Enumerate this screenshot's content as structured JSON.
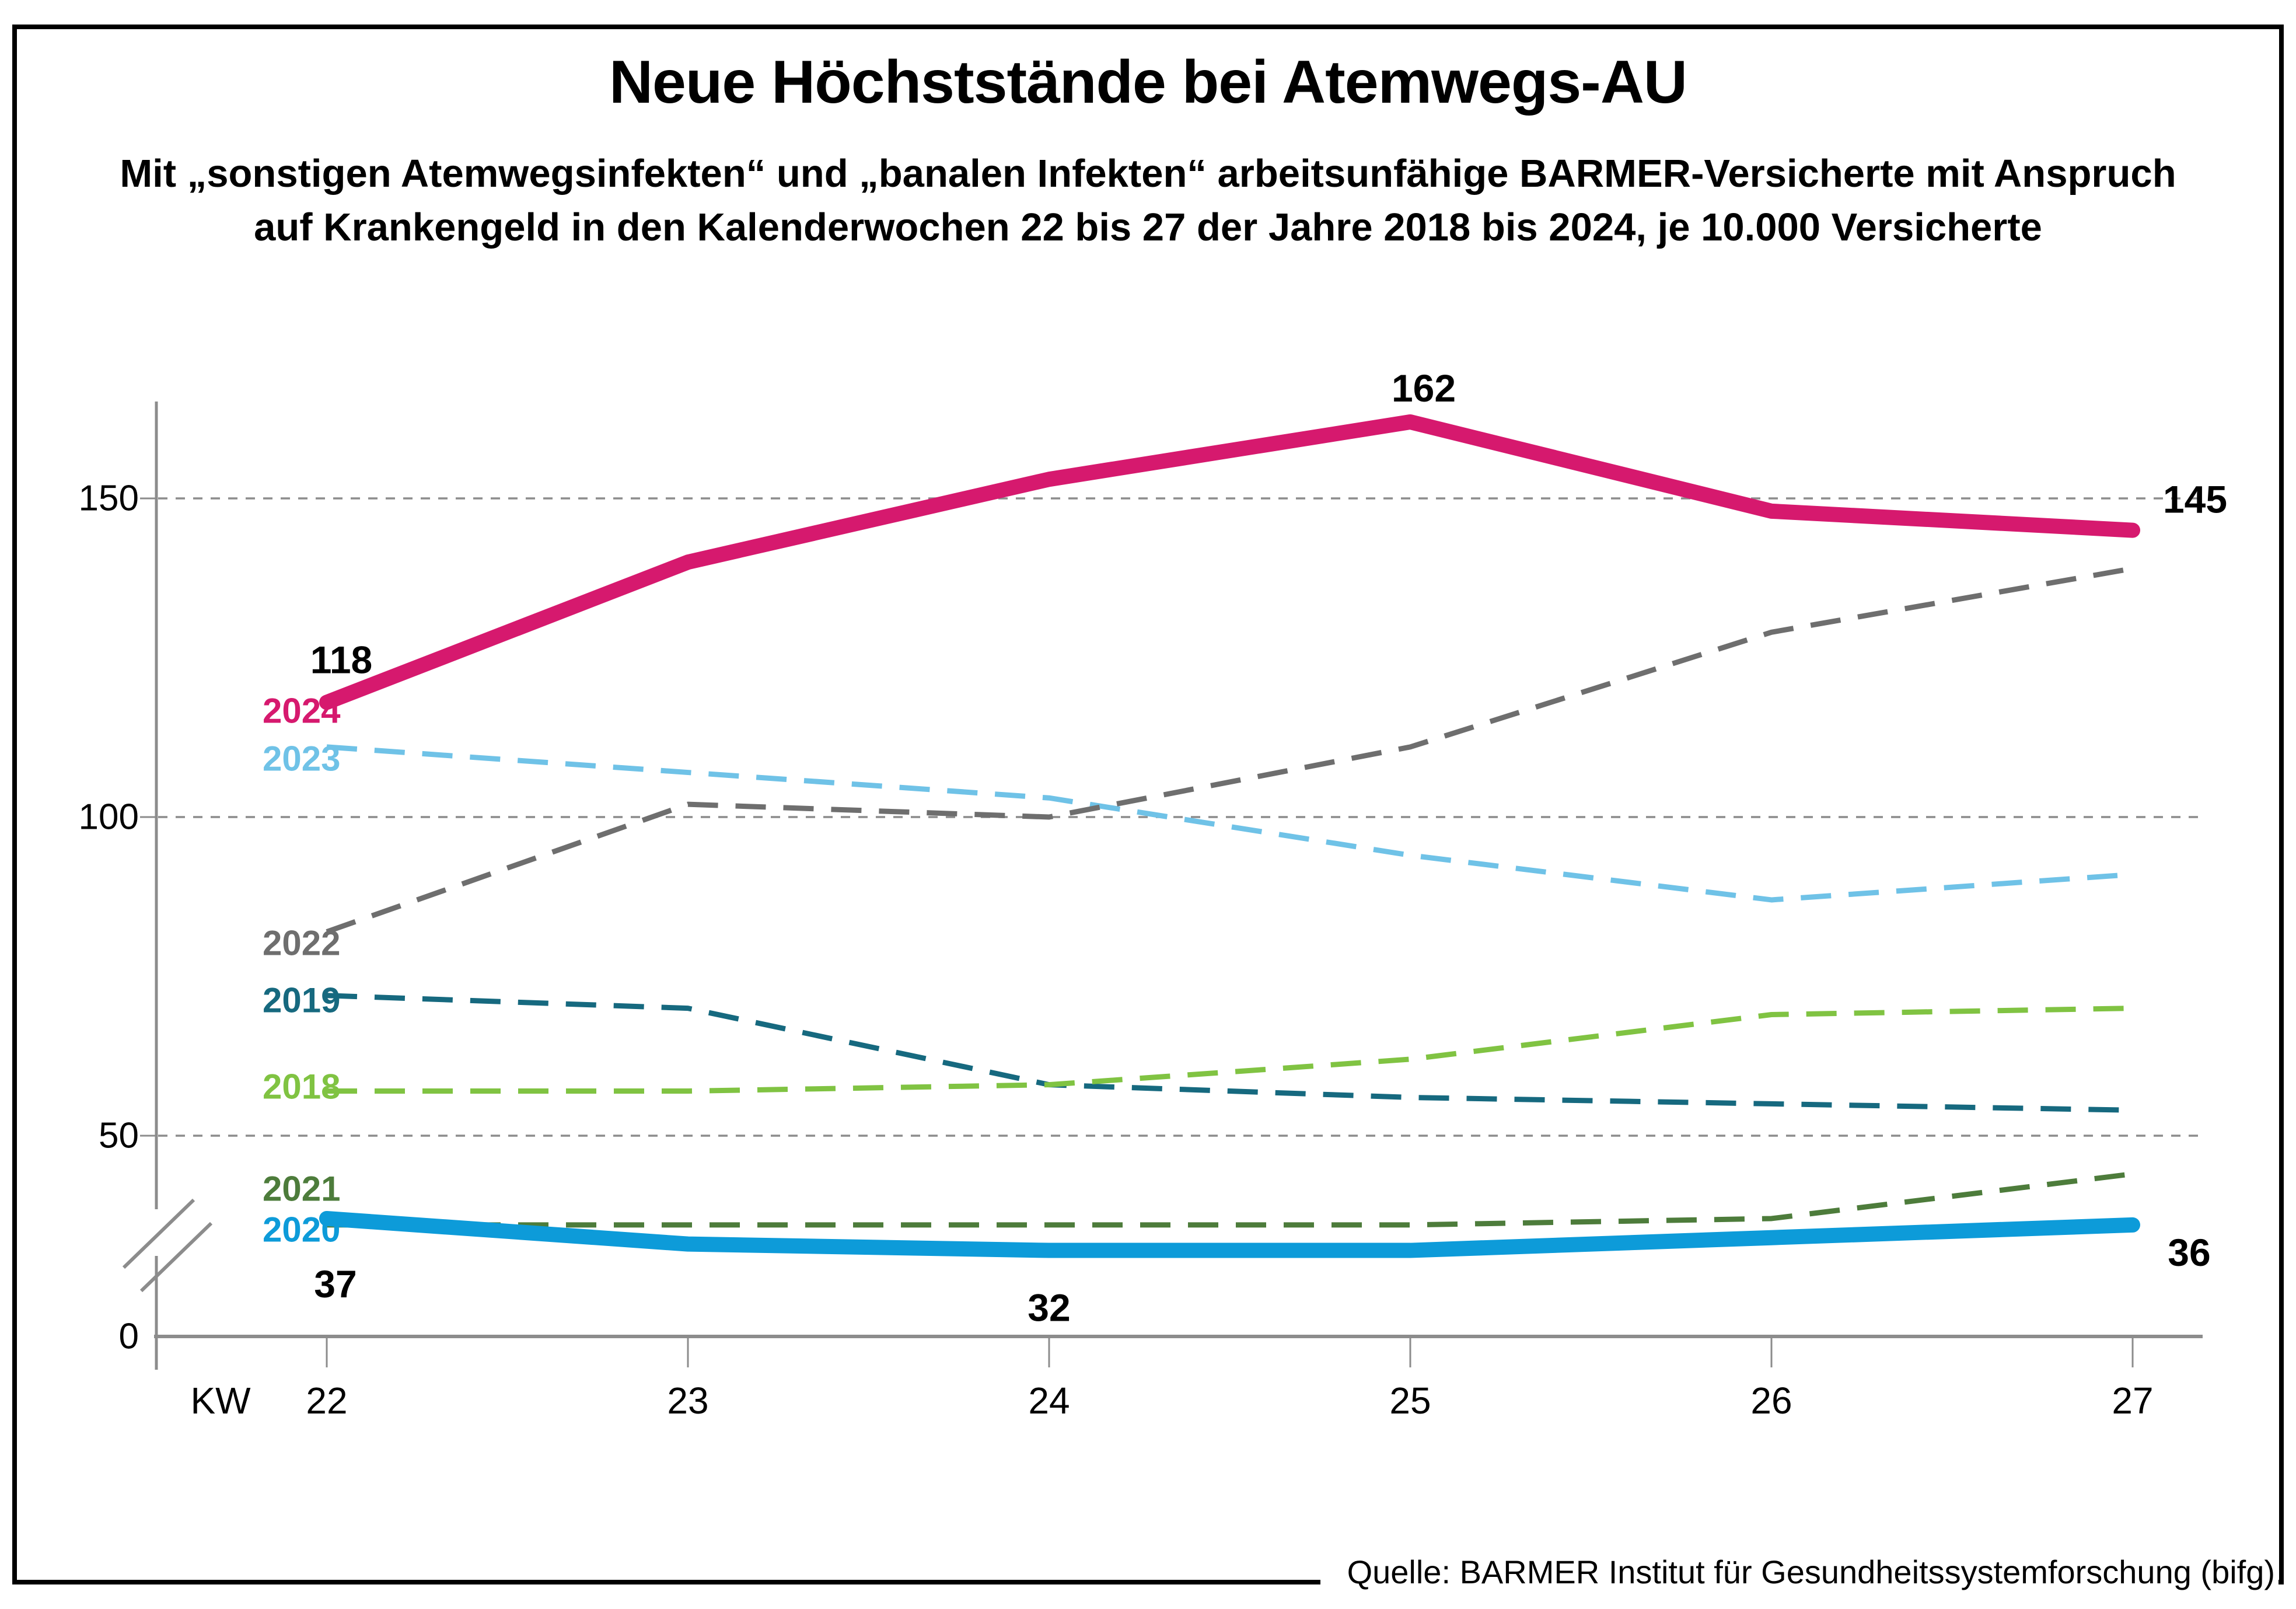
{
  "header": {
    "title": "Neue Höchststände bei Atemwegs-AU",
    "subtitle_lines": [
      "Mit „sonstigen Atemwegsinfekten“ und „banalen Infekten“ arbeitsunfähige BARMER-Versicherte mit Anspruch",
      "auf Krankengeld in den Kalenderwochen 22 bis 27 der Jahre 2018 bis 2024, je 10.000 Versicherte"
    ]
  },
  "source": "Quelle: BARMER Institut für Gesundheitssystemforschung (bifg)",
  "colors": {
    "axis": "#8c8c8c",
    "gridline": "#8c8c8c",
    "text": "#000000",
    "background": "#ffffff",
    "frame": "#000000"
  },
  "chart_data": {
    "type": "line",
    "x_axis_prefix_label": "KW",
    "categories": [
      "22",
      "23",
      "24",
      "25",
      "26",
      "27"
    ],
    "y_ticks": [
      "150",
      "100",
      "50",
      "0"
    ],
    "y_tick_values": [
      150,
      100,
      50,
      0
    ],
    "ylim": [
      0,
      170
    ],
    "axis_break": true,
    "grid": "horizontal-dashed",
    "legend_position": "left-inline",
    "series": [
      {
        "name": "2023",
        "color": "#6fc2e7",
        "style": "dashed",
        "values": [
          111,
          107,
          103,
          94,
          87,
          91
        ],
        "value_labels": []
      },
      {
        "name": "2022",
        "color": "#6e6e6e",
        "style": "dashed",
        "values": [
          82,
          102,
          100,
          111,
          129,
          139
        ],
        "value_labels": []
      },
      {
        "name": "2019",
        "color": "#16697f",
        "style": "dashed",
        "values": [
          72,
          70,
          58,
          56,
          55,
          54
        ],
        "value_labels": []
      },
      {
        "name": "2018",
        "color": "#80c342",
        "style": "dashed",
        "values": [
          57,
          57,
          58,
          62,
          69,
          70
        ],
        "value_labels": []
      },
      {
        "name": "2021",
        "color": "#4d7c3b",
        "style": "dashed",
        "values": [
          36,
          36,
          36,
          36,
          37,
          44
        ],
        "value_labels": []
      },
      {
        "name": "2020",
        "color": "#0d9bd9",
        "style": "solid-thick",
        "values": [
          37,
          33,
          32,
          32,
          34,
          36
        ],
        "value_labels": [
          {
            "index": 0,
            "label": "37"
          },
          {
            "index": 2,
            "label": "32"
          },
          {
            "index": 5,
            "label": "36"
          }
        ]
      },
      {
        "name": "2024",
        "color": "#d6196e",
        "style": "solid-thick",
        "values": [
          118,
          140,
          153,
          162,
          148,
          145
        ],
        "value_labels": [
          {
            "index": 0,
            "label": "118"
          },
          {
            "index": 3,
            "label": "162"
          },
          {
            "index": 5,
            "label": "145"
          }
        ]
      }
    ]
  }
}
